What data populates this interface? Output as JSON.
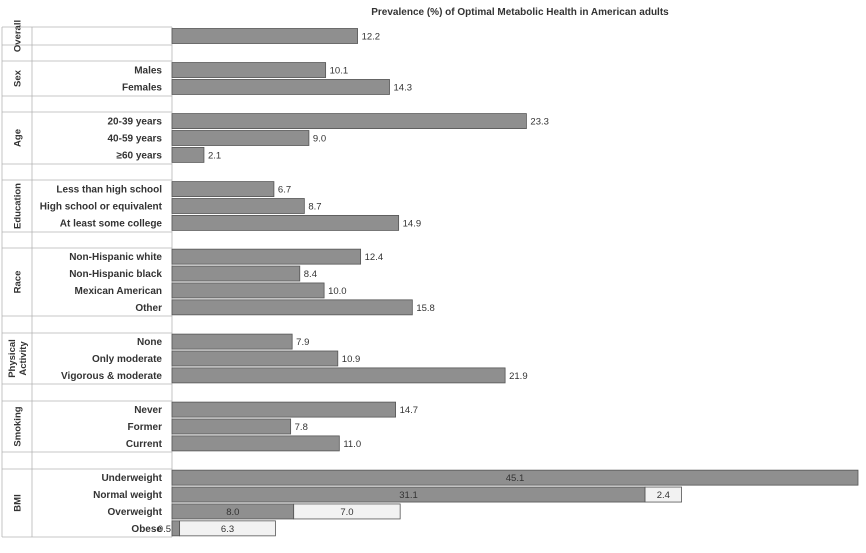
{
  "chart_data": {
    "type": "bar",
    "orientation": "horizontal",
    "title": "Prevalence (%) of Optimal Metabolic Health in American adults",
    "xlim": [
      0,
      45.1
    ],
    "groups": [
      {
        "name": "Overall",
        "items": [
          {
            "label": "",
            "values": [
              12.2
            ]
          }
        ]
      },
      {
        "name": "Sex",
        "items": [
          {
            "label": "Males",
            "values": [
              10.1
            ]
          },
          {
            "label": "Females",
            "values": [
              14.3
            ]
          }
        ]
      },
      {
        "name": "Age",
        "items": [
          {
            "label": "20-39 years",
            "values": [
              23.3
            ]
          },
          {
            "label": "40-59 years",
            "values": [
              9.0
            ]
          },
          {
            "label": "≥60 years",
            "values": [
              2.1
            ]
          }
        ]
      },
      {
        "name": "Education",
        "items": [
          {
            "label": "Less than high school",
            "values": [
              6.7
            ]
          },
          {
            "label": "High school or equivalent",
            "values": [
              8.7
            ]
          },
          {
            "label": "At least some college",
            "values": [
              14.9
            ]
          }
        ]
      },
      {
        "name": "Race",
        "items": [
          {
            "label": "Non-Hispanic white",
            "values": [
              12.4
            ]
          },
          {
            "label": "Non-Hispanic black",
            "values": [
              8.4
            ]
          },
          {
            "label": "Mexican American",
            "values": [
              10.0
            ]
          },
          {
            "label": "Other",
            "values": [
              15.8
            ]
          }
        ]
      },
      {
        "name": "Physical Activity",
        "items": [
          {
            "label": "None",
            "values": [
              7.9
            ]
          },
          {
            "label": "Only moderate",
            "values": [
              10.9
            ]
          },
          {
            "label": "Vigorous & moderate",
            "values": [
              21.9
            ]
          }
        ]
      },
      {
        "name": "Smoking",
        "items": [
          {
            "label": "Never",
            "values": [
              14.7
            ]
          },
          {
            "label": "Former",
            "values": [
              7.8
            ]
          },
          {
            "label": "Current",
            "values": [
              11.0
            ]
          }
        ]
      },
      {
        "name": "BMI",
        "items": [
          {
            "label": "Underweight",
            "values": [
              45.1
            ]
          },
          {
            "label": "Normal weight",
            "values": [
              31.1,
              2.4
            ]
          },
          {
            "label": "Overweight",
            "values": [
              8.0,
              7.0
            ]
          },
          {
            "label": "Obese",
            "values": [
              0.5,
              6.3
            ]
          }
        ]
      }
    ]
  }
}
